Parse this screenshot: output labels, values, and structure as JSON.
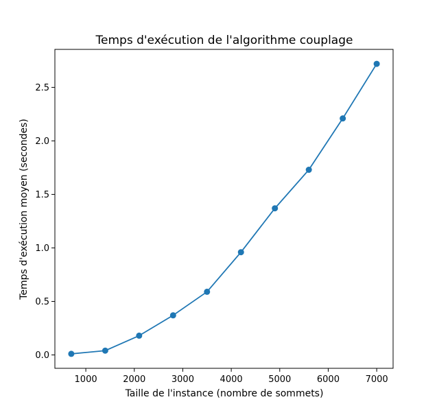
{
  "chart_data": {
    "type": "line",
    "title": "Temps d'exécution de l'algorithme couplage",
    "xlabel": "Taille de l'instance (nombre de sommets)",
    "ylabel": "Temps d'exécution moyen (secondes)",
    "xlim": [
      362,
      7338
    ],
    "ylim": [
      -0.125,
      2.855
    ],
    "xticks": [
      1000,
      2000,
      3000,
      4000,
      5000,
      6000,
      7000
    ],
    "xtick_labels": [
      "1000",
      "2000",
      "3000",
      "4000",
      "5000",
      "6000",
      "7000"
    ],
    "yticks": [
      0.0,
      0.5,
      1.0,
      1.5,
      2.0,
      2.5
    ],
    "ytick_labels": [
      "0.0",
      "0.5",
      "1.0",
      "1.5",
      "2.0",
      "2.5"
    ],
    "grid": false,
    "legend": "none",
    "color": "#1f77b4",
    "marker": "circle",
    "series": [
      {
        "x": [
          700,
          1400,
          2100,
          2800,
          3500,
          4200,
          4900,
          5600,
          6300,
          7000
        ],
        "y": [
          0.01,
          0.04,
          0.18,
          0.37,
          0.59,
          0.96,
          1.37,
          1.73,
          2.21,
          2.72
        ]
      }
    ]
  }
}
